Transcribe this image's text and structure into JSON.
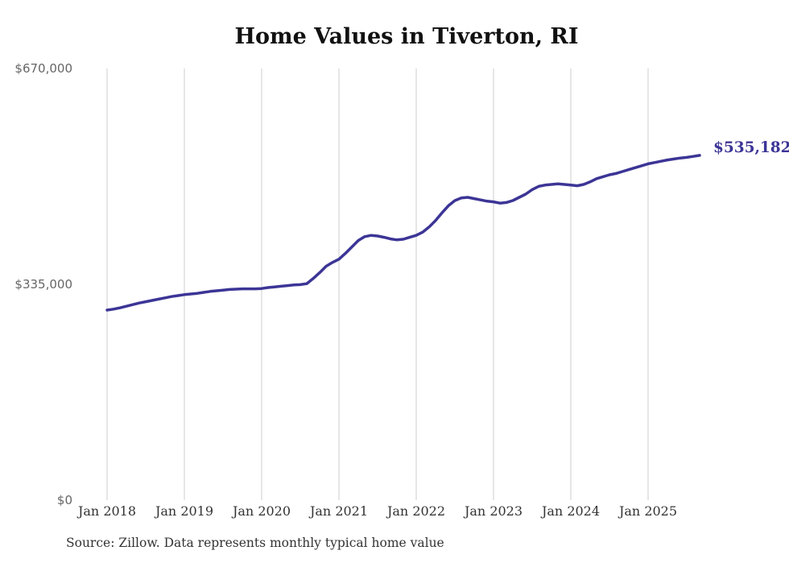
{
  "page": {
    "title": "Home Values in Tiverton, RI",
    "end_value_label": "$535,182",
    "source_note": "Source: Zillow. Data represents monthly typical home value"
  },
  "chart_data": {
    "type": "line",
    "title": "Home Values in Tiverton, RI",
    "xlabel": "",
    "ylabel": "",
    "ylim": [
      0,
      670000
    ],
    "grid": "vertical-only",
    "legend": "none",
    "y_ticks": [
      {
        "value": 670000,
        "label": "$670,000"
      },
      {
        "value": 335000,
        "label": "$335,000"
      },
      {
        "value": 0,
        "label": "$0"
      }
    ],
    "x_ticks": [
      "Jan 2018",
      "Jan 2019",
      "Jan 2020",
      "Jan 2021",
      "Jan 2022",
      "Jan 2023",
      "Jan 2024",
      "Jan 2025"
    ],
    "x_monthly_start": "2018-01",
    "x_monthly_end": "2025-09",
    "end_label": "$535,182",
    "final_value": 535182,
    "source": "Source: Zillow. Data represents monthly typical home value",
    "colors": {
      "line": "#3C3596",
      "grid": "#cccccc",
      "y_tick_text": "#666666",
      "x_tick_text": "#333333",
      "title": "#111111",
      "end_label": "#3C3596"
    },
    "series": [
      {
        "name": "Monthly typical home value",
        "color": "#3C3596",
        "values": [
          295000,
          296500,
          298500,
          301000,
          303500,
          306000,
          308000,
          310000,
          312000,
          314000,
          316000,
          317500,
          319000,
          320000,
          321000,
          322500,
          324000,
          325000,
          326000,
          327000,
          327500,
          328000,
          328000,
          328000,
          328500,
          330000,
          331000,
          332000,
          333000,
          334000,
          334500,
          336000,
          344000,
          353000,
          363000,
          369000,
          374000,
          383000,
          393000,
          403000,
          409000,
          411000,
          410000,
          408000,
          405500,
          404000,
          405000,
          408000,
          411000,
          416000,
          424000,
          434000,
          446000,
          457000,
          465000,
          469000,
          470000,
          468000,
          466000,
          464000,
          463000,
          461000,
          462000,
          465000,
          470000,
          475000,
          482000,
          487000,
          489000,
          490000,
          491000,
          490000,
          489000,
          488000,
          490000,
          494000,
          499000,
          502000,
          505000,
          507000,
          510000,
          513000,
          516000,
          519000,
          522000,
          524000,
          526000,
          528000,
          529500,
          531000,
          532000,
          533500,
          535182
        ]
      }
    ]
  }
}
